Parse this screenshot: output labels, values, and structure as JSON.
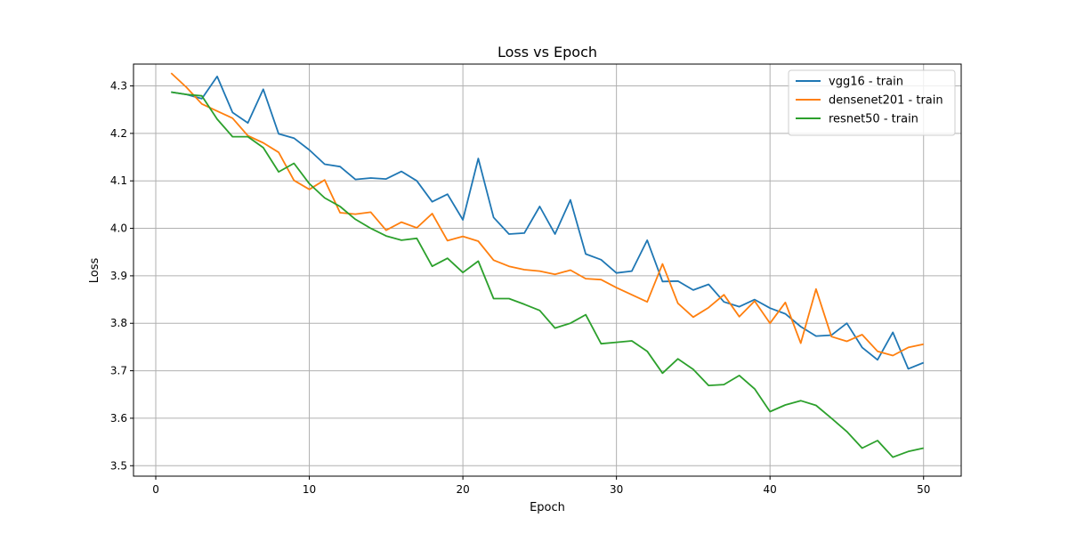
{
  "chart_data": {
    "type": "line",
    "title": "Loss vs Epoch",
    "xlabel": "Epoch",
    "ylabel": "Loss",
    "xlim": [
      -1.45,
      52.45
    ],
    "ylim": [
      3.478,
      4.346
    ],
    "xticks": [
      0,
      10,
      20,
      30,
      40,
      50
    ],
    "yticks": [
      3.5,
      3.6,
      3.7,
      3.8,
      3.9,
      4.0,
      4.1,
      4.2,
      4.3
    ],
    "ytick_labels": [
      "3.5",
      "3.6",
      "3.7",
      "3.8",
      "3.9",
      "4.0",
      "4.1",
      "4.2",
      "4.3"
    ],
    "grid": true,
    "legend_position": "top-right",
    "x": [
      1,
      2,
      3,
      4,
      5,
      6,
      7,
      8,
      9,
      10,
      11,
      12,
      13,
      14,
      15,
      16,
      17,
      18,
      19,
      20,
      21,
      22,
      23,
      24,
      25,
      26,
      27,
      28,
      29,
      30,
      31,
      32,
      33,
      34,
      35,
      36,
      37,
      38,
      39,
      40,
      41,
      42,
      43,
      44,
      45,
      46,
      47,
      48,
      49,
      50
    ],
    "series": [
      {
        "name": "vgg16 - train",
        "color": "#1f77b4",
        "values": [
          4.287,
          4.282,
          4.273,
          4.32,
          4.244,
          4.222,
          4.293,
          4.199,
          4.19,
          4.165,
          4.135,
          4.13,
          4.103,
          4.106,
          4.104,
          4.12,
          4.1,
          4.056,
          4.072,
          4.018,
          4.147,
          4.023,
          3.988,
          3.99,
          4.046,
          3.988,
          4.06,
          3.946,
          3.934,
          3.906,
          3.91,
          3.975,
          3.888,
          3.889,
          3.87,
          3.882,
          3.845,
          3.835,
          3.85,
          3.832,
          3.82,
          3.793,
          3.773,
          3.775,
          3.8,
          3.749,
          3.723,
          3.781,
          3.704,
          3.717
        ]
      },
      {
        "name": "densenet201 - train",
        "color": "#ff7f0e",
        "values": [
          4.327,
          4.297,
          4.262,
          4.247,
          4.232,
          4.195,
          4.18,
          4.16,
          4.101,
          4.082,
          4.102,
          4.033,
          4.03,
          4.034,
          3.996,
          4.013,
          4.001,
          4.031,
          3.974,
          3.983,
          3.973,
          3.933,
          3.92,
          3.913,
          3.91,
          3.903,
          3.912,
          3.894,
          3.892,
          3.875,
          3.86,
          3.845,
          3.925,
          3.842,
          3.813,
          3.833,
          3.86,
          3.814,
          3.847,
          3.8,
          3.844,
          3.758,
          3.872,
          3.772,
          3.762,
          3.776,
          3.741,
          3.732,
          3.749,
          3.756
        ]
      },
      {
        "name": "resnet50 - train",
        "color": "#2ca02c",
        "values": [
          4.287,
          4.282,
          4.279,
          4.23,
          4.193,
          4.193,
          4.17,
          4.119,
          4.137,
          4.094,
          4.064,
          4.046,
          4.019,
          4.0,
          3.984,
          3.975,
          3.979,
          3.92,
          3.937,
          3.907,
          3.931,
          3.852,
          3.852,
          3.84,
          3.827,
          3.79,
          3.8,
          3.818,
          3.757,
          3.76,
          3.763,
          3.741,
          3.695,
          3.725,
          3.703,
          3.669,
          3.671,
          3.69,
          3.662,
          3.614,
          3.628,
          3.637,
          3.627,
          3.6,
          3.572,
          3.537,
          3.553,
          3.518,
          3.53,
          3.537
        ]
      }
    ]
  }
}
